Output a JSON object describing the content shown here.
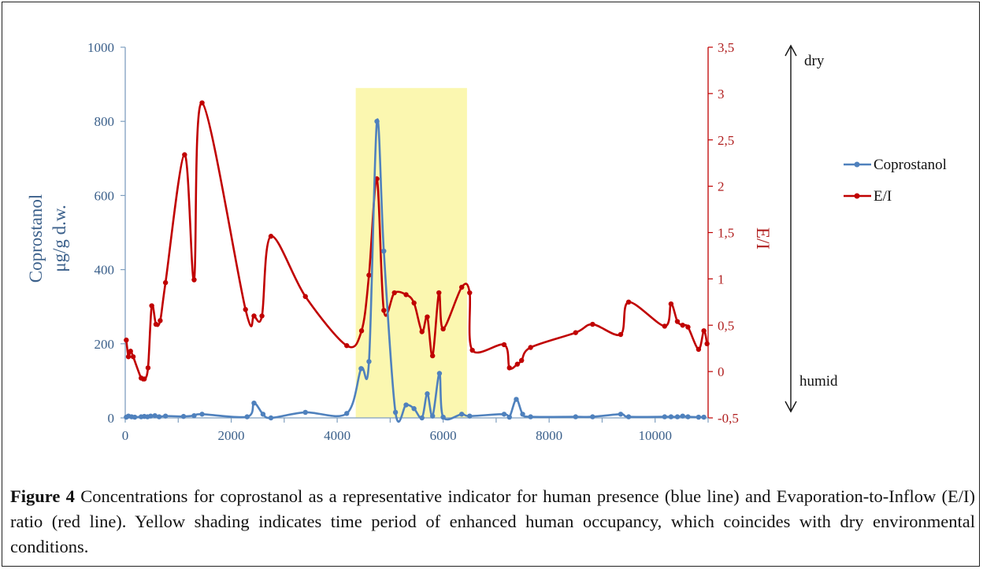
{
  "chart_data": {
    "type": "line",
    "title": "",
    "xlabel": "",
    "ylabel_left": "Coprostanol μg/g d.w.",
    "ylabel_left_lines": [
      "Coprostanol",
      "μg/g d.w."
    ],
    "ylabel_right": "E/I",
    "xlim": [
      0,
      11000
    ],
    "ylim_left": [
      0,
      1000
    ],
    "ylim_right": [
      -0.5,
      3.5
    ],
    "x_ticks": [
      "0",
      "2000",
      "4000",
      "6000",
      "8000",
      "10000"
    ],
    "y_left_ticks": [
      "0",
      "200",
      "400",
      "600",
      "800",
      "1000"
    ],
    "y_right_ticks": [
      "-0,5",
      "0",
      "0,5",
      "1",
      "1,5",
      "2",
      "2,5",
      "3",
      "3,5"
    ],
    "shaded_region": {
      "x": [
        4350,
        6450
      ],
      "y_left": [
        0,
        890
      ],
      "color": "#fbf7b0"
    },
    "annotations": {
      "top": "dry",
      "bottom": "humid"
    },
    "series": [
      {
        "name": "Coprostanol",
        "axis": "left",
        "color": "#4f81bd",
        "x": [
          20,
          60,
          120,
          180,
          300,
          360,
          420,
          480,
          560,
          640,
          760,
          1100,
          1300,
          1450,
          2300,
          2430,
          2600,
          2750,
          3400,
          4180,
          4450,
          4600,
          4750,
          4880,
          5100,
          5300,
          5450,
          5600,
          5700,
          5800,
          5930,
          6000,
          6350,
          6500,
          7150,
          7250,
          7380,
          7500,
          7650,
          8500,
          8820,
          9350,
          9500,
          10180,
          10300,
          10420,
          10520,
          10620,
          10820,
          10920
        ],
        "y": [
          2,
          5,
          3,
          2,
          3,
          4,
          3,
          5,
          6,
          3,
          5,
          4,
          6,
          10,
          3,
          40,
          10,
          0,
          15,
          12,
          133,
          152,
          800,
          450,
          15,
          35,
          25,
          0,
          65,
          5,
          120,
          2,
          10,
          5,
          10,
          2,
          50,
          10,
          3,
          3,
          3,
          10,
          3,
          3,
          3,
          3,
          5,
          3,
          2,
          2
        ]
      },
      {
        "name": "E/I",
        "axis": "right",
        "color": "#c00000",
        "x": [
          20,
          60,
          100,
          150,
          300,
          360,
          430,
          500,
          580,
          660,
          760,
          1120,
          1300,
          1450,
          2270,
          2430,
          2580,
          2750,
          3400,
          4180,
          4460,
          4600,
          4750,
          4880,
          5080,
          5300,
          5450,
          5600,
          5700,
          5800,
          5920,
          6000,
          6350,
          6500,
          6550,
          7150,
          7250,
          7400,
          7480,
          7650,
          8500,
          8820,
          9350,
          9500,
          10180,
          10300,
          10420,
          10520,
          10620,
          10820,
          10920,
          10980
        ],
        "y": [
          0.34,
          0.16,
          0.22,
          0.16,
          -0.07,
          -0.08,
          0.04,
          0.71,
          0.51,
          0.55,
          0.96,
          2.34,
          0.99,
          2.9,
          0.67,
          0.6,
          0.6,
          1.46,
          0.81,
          0.28,
          0.44,
          1.04,
          2.08,
          0.66,
          0.85,
          0.83,
          0.74,
          0.43,
          0.59,
          0.17,
          0.85,
          0.46,
          0.91,
          0.85,
          0.23,
          0.29,
          0.04,
          0.08,
          0.12,
          0.26,
          0.42,
          0.51,
          0.4,
          0.75,
          0.49,
          0.73,
          0.54,
          0.5,
          0.48,
          0.24,
          0.44,
          0.3
        ]
      }
    ]
  },
  "caption": {
    "label": "Figure 4",
    "text": " Concentrations for coprostanol as a representative indicator for human presence (blue line) and Evaporation-to-Inflow (E/I) ratio (red line). Yellow shading indicates time period of enhanced human occupancy, which coincides with dry environmental conditions."
  }
}
